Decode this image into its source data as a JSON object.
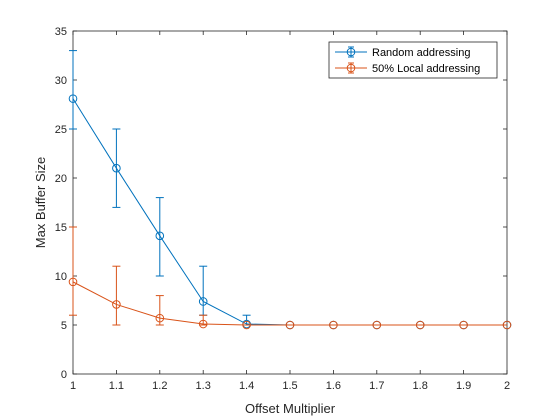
{
  "chart_data": {
    "type": "line",
    "title": "",
    "xlabel": "Offset Multiplier",
    "ylabel": "Max Buffer Size",
    "xlim": [
      1,
      2
    ],
    "ylim": [
      0,
      35
    ],
    "xticks": [
      "1",
      "1.1",
      "1.2",
      "1.3",
      "1.4",
      "1.5",
      "1.6",
      "1.7",
      "1.8",
      "1.9",
      "2"
    ],
    "yticks": [
      "0",
      "5",
      "10",
      "15",
      "20",
      "25",
      "30",
      "35"
    ],
    "grid": false,
    "legend_position": "top-right",
    "x": [
      1,
      1.1,
      1.2,
      1.3,
      1.4,
      1.5,
      1.6,
      1.7,
      1.8,
      1.9,
      2
    ],
    "series": [
      {
        "name": "Random addressing",
        "color": "#0072BD",
        "marker": "circle",
        "values": [
          28.1,
          21,
          14.1,
          7.4,
          5.1,
          5,
          5,
          5,
          5,
          5,
          5
        ],
        "error_low": [
          25,
          17,
          10,
          6,
          5,
          5,
          5,
          5,
          5,
          5,
          5
        ],
        "error_high": [
          33,
          25,
          18,
          11,
          6,
          5,
          5,
          5,
          5,
          5,
          5
        ]
      },
      {
        "name": "50% Local addressing",
        "color": "#D95319",
        "marker": "circle",
        "values": [
          9.4,
          7.1,
          5.7,
          5.1,
          5,
          5,
          5,
          5,
          5,
          5,
          5
        ],
        "error_low": [
          6,
          5,
          5,
          5,
          5,
          5,
          5,
          5,
          5,
          5,
          5
        ],
        "error_high": [
          15,
          11,
          8,
          6,
          5,
          5,
          5,
          5,
          5,
          5,
          5
        ]
      }
    ]
  }
}
